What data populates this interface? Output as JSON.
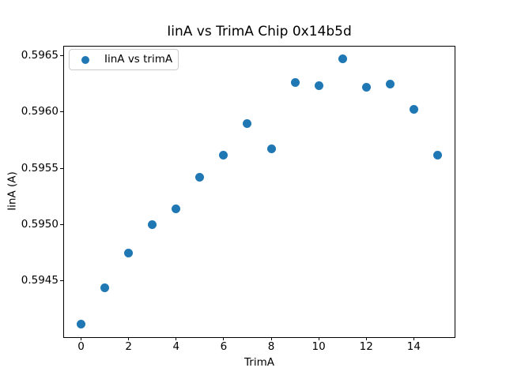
{
  "figure": {
    "background": "#ffffff",
    "text_color": "#000000",
    "spine_color": "#000000",
    "legend_border_color": "#cbcbcb"
  },
  "chart_data": {
    "type": "scatter",
    "title": "IinA vs TrimA Chip 0x14b5d",
    "xlabel": "TrimA",
    "ylabel": "IinA (A)",
    "legend": {
      "label": "IinA vs trimA",
      "position": "upper left"
    },
    "marker_color": "#1f77b4",
    "marker_shape": "circle",
    "grid": false,
    "x": [
      0,
      1,
      2,
      3,
      4,
      5,
      6,
      7,
      8,
      9,
      10,
      11,
      12,
      13,
      14,
      15
    ],
    "y": [
      0.59412,
      0.59444,
      0.59475,
      0.595,
      0.59514,
      0.59542,
      0.59562,
      0.5959,
      0.59567,
      0.59626,
      0.59623,
      0.59647,
      0.59622,
      0.59625,
      0.59602,
      0.59562
    ],
    "xlim": [
      -0.75,
      15.75
    ],
    "ylim": [
      0.594,
      0.59659
    ],
    "xticks": [
      0,
      2,
      4,
      6,
      8,
      10,
      12,
      14
    ],
    "xtick_labels": [
      "0",
      "2",
      "4",
      "6",
      "8",
      "10",
      "12",
      "14"
    ],
    "yticks": [
      0.5945,
      0.595,
      0.5955,
      0.596,
      0.5965
    ],
    "ytick_labels": [
      "0.5945",
      "0.5950",
      "0.5955",
      "0.5960",
      "0.5965"
    ]
  }
}
